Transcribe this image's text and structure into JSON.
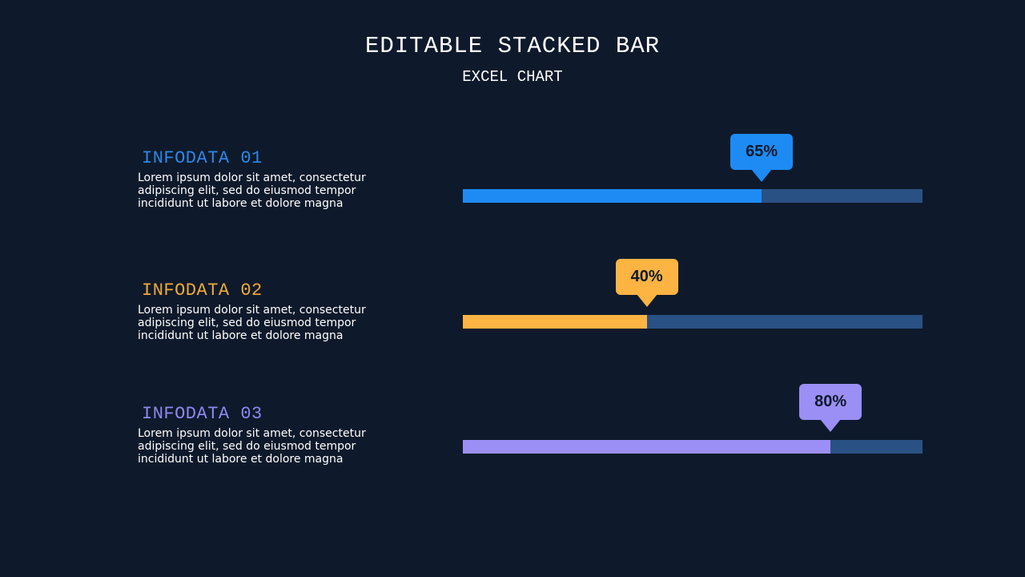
{
  "header": {
    "title": "EDITABLE STACKED BAR",
    "subtitle": "EXCEL CHART"
  },
  "colors": {
    "background": "#0e1a2b",
    "track": "#2a5183",
    "series_1": "#1e8bf5",
    "series_2": "#fdb443",
    "series_3": "#9b8ff5",
    "label_1": "#2f86e6",
    "label_2": "#f2a93b",
    "label_3": "#8f87f0"
  },
  "chart_data": {
    "type": "bar",
    "orientation": "horizontal",
    "stacked": true,
    "categories": [
      "INFODATA 01",
      "INFODATA 02",
      "INFODATA 03"
    ],
    "values": [
      65,
      40,
      80
    ],
    "labels": [
      "65%",
      "40%",
      "80%"
    ],
    "xlim": [
      0,
      100
    ],
    "descriptions": [
      "Lorem ipsum dolor sit amet, consectetur adipiscing elit, sed do eiusmod tempor incididunt ut labore et dolore magna",
      "Lorem ipsum dolor sit amet, consectetur adipiscing elit, sed do eiusmod tempor incididunt ut labore et dolore magna",
      "Lorem ipsum dolor sit amet, consectetur adipiscing elit, sed do eiusmod tempor incididunt ut labore et dolore magna"
    ],
    "title": "EDITABLE STACKED BAR",
    "subtitle": "EXCEL CHART",
    "grid": false,
    "legend": "none"
  }
}
